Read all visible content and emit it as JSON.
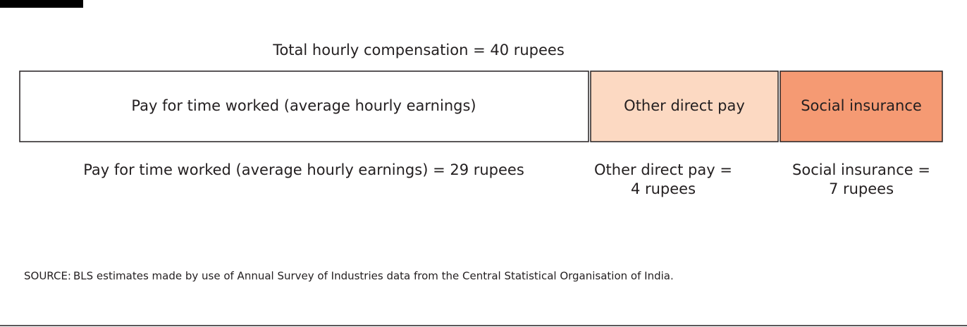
{
  "header": {
    "title": "Total hourly compensation = 40 rupees"
  },
  "segments": [
    {
      "label": "Pay for time worked (average hourly earnings)",
      "caption": [
        "Pay for time worked (average hourly earnings) = 29 rupees"
      ]
    },
    {
      "label": "Other direct pay",
      "caption": [
        "Other direct pay =",
        "4 rupees"
      ]
    },
    {
      "label": "Social insurance",
      "caption": [
        "Social insurance =",
        "7 rupees"
      ]
    }
  ],
  "source": {
    "label": "SOURCE:",
    "text": "BLS estimates made by use of Annual Survey of Industries data from the Central Statistical Organisation of India."
  }
}
